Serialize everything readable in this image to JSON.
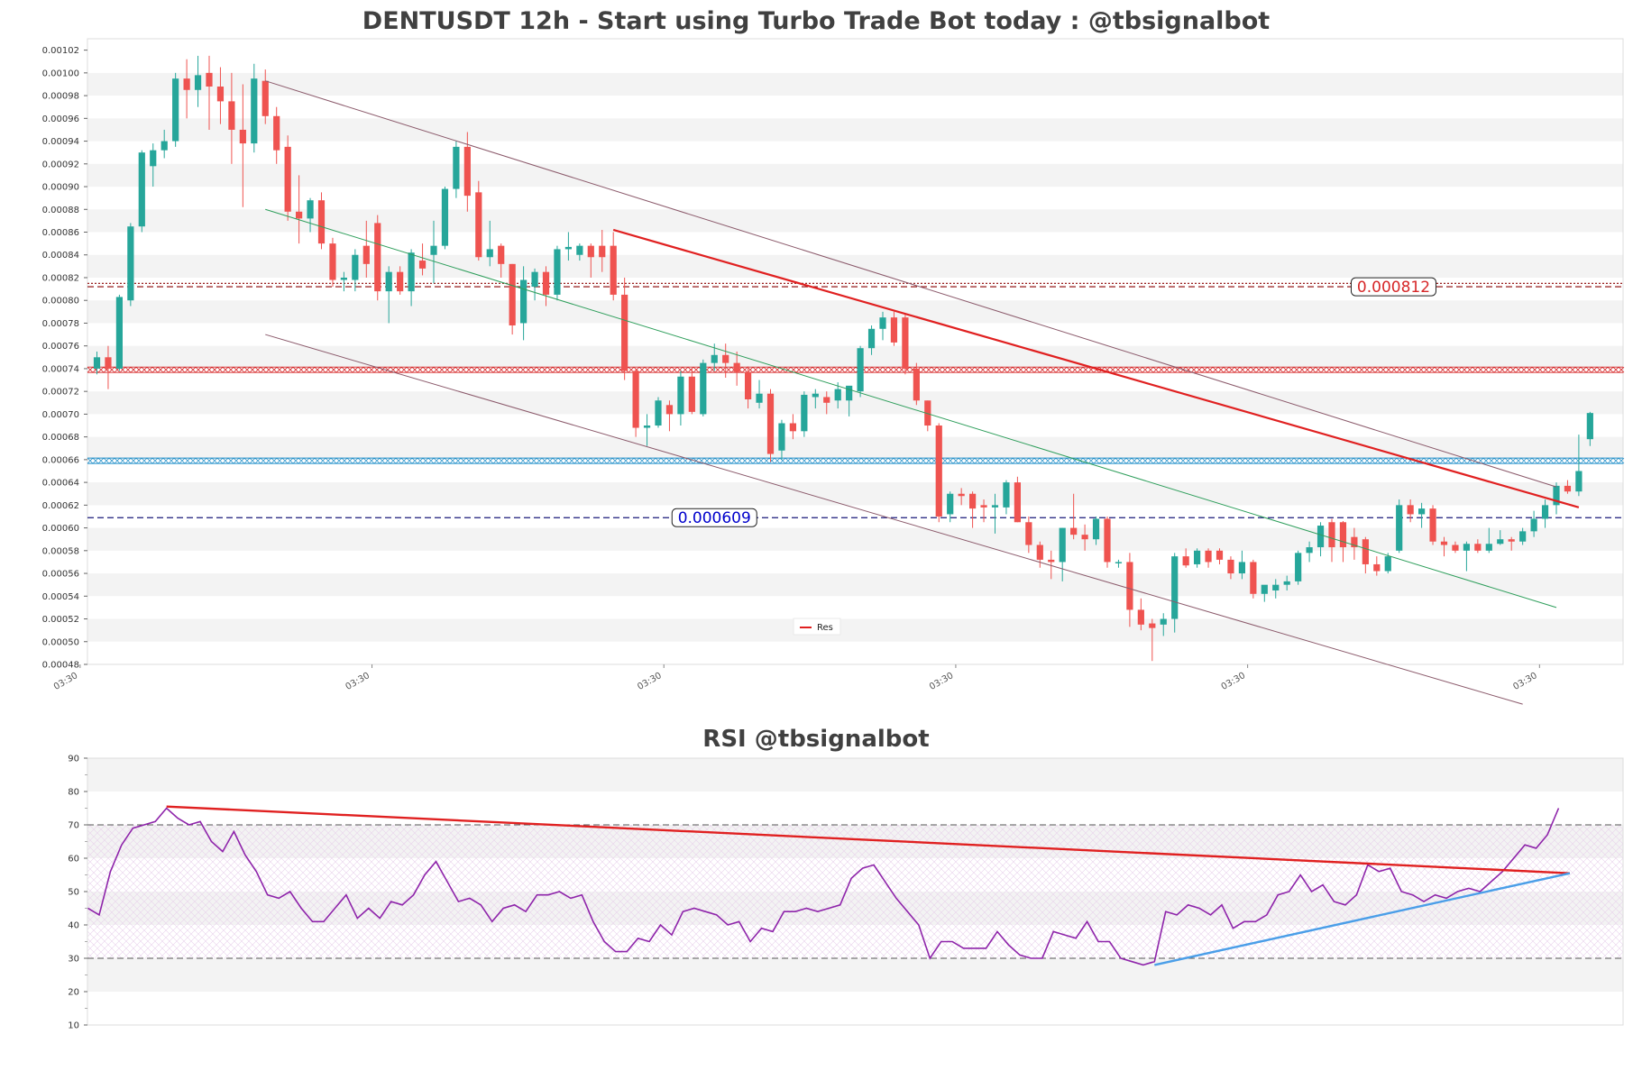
{
  "chart_data": [
    {
      "type": "candlestick",
      "title": "DENTUSDT 12h - Start using Turbo Trade Bot today : @tbsignalbot",
      "ylim": [
        0.00048,
        0.00103
      ],
      "y_ticks": [
        "0.00048",
        "0.00050",
        "0.00052",
        "0.00054",
        "0.00056",
        "0.00058",
        "0.00060",
        "0.00062",
        "0.00064",
        "0.00066",
        "0.00068",
        "0.00070",
        "0.00072",
        "0.00074",
        "0.00076",
        "0.00078",
        "0.00080",
        "0.00082",
        "0.00084",
        "0.00086",
        "0.00088",
        "0.00090",
        "0.00092",
        "0.00094",
        "0.00096",
        "0.00098",
        "0.00100",
        "0.00102"
      ],
      "x_tick_labels": [
        "03:30",
        "03:30",
        "03:30",
        "03:30",
        "03:30",
        "03:30"
      ],
      "x_tick_bars": [
        -1.5,
        24.5,
        50.5,
        76.5,
        102.5,
        128.5
      ],
      "ohlc": [
        [
          0.00074,
          0.000755,
          0.000735,
          0.00075
        ],
        [
          0.00075,
          0.00076,
          0.000722,
          0.00074
        ],
        [
          0.00074,
          0.000805,
          0.000738,
          0.000803
        ],
        [
          0.0008,
          0.000868,
          0.000795,
          0.000865
        ],
        [
          0.000865,
          0.000932,
          0.00086,
          0.00093
        ],
        [
          0.000918,
          0.000938,
          0.0009,
          0.000932
        ],
        [
          0.000932,
          0.00095,
          0.000925,
          0.00094
        ],
        [
          0.00094,
          0.001,
          0.000935,
          0.000995
        ],
        [
          0.000995,
          0.001012,
          0.00096,
          0.000985
        ],
        [
          0.000985,
          0.001015,
          0.00097,
          0.000998
        ],
        [
          0.001,
          0.001015,
          0.00095,
          0.000988
        ],
        [
          0.000988,
          0.001005,
          0.000955,
          0.000975
        ],
        [
          0.000975,
          0.001,
          0.00092,
          0.00095
        ],
        [
          0.00095,
          0.00099,
          0.000882,
          0.000938
        ],
        [
          0.000938,
          0.001008,
          0.00093,
          0.000995
        ],
        [
          0.000993,
          0.001003,
          0.000955,
          0.000962
        ],
        [
          0.000962,
          0.00097,
          0.00092,
          0.000932
        ],
        [
          0.000935,
          0.000945,
          0.00087,
          0.000878
        ],
        [
          0.000878,
          0.00091,
          0.00085,
          0.000872
        ],
        [
          0.000872,
          0.00089,
          0.00086,
          0.000888
        ],
        [
          0.000888,
          0.000895,
          0.000845,
          0.00085
        ],
        [
          0.00085,
          0.000855,
          0.000812,
          0.000818
        ],
        [
          0.000818,
          0.000825,
          0.000808,
          0.00082
        ],
        [
          0.000818,
          0.000845,
          0.000808,
          0.00084
        ],
        [
          0.000848,
          0.00087,
          0.00082,
          0.000832
        ],
        [
          0.000868,
          0.000875,
          0.0008,
          0.000808
        ],
        [
          0.000808,
          0.00083,
          0.00078,
          0.000825
        ],
        [
          0.000825,
          0.00083,
          0.000805,
          0.000808
        ],
        [
          0.000808,
          0.000845,
          0.000795,
          0.000842
        ],
        [
          0.000835,
          0.00085,
          0.000822,
          0.000828
        ],
        [
          0.00084,
          0.00087,
          0.000815,
          0.000848
        ],
        [
          0.000848,
          0.0009,
          0.000845,
          0.000898
        ],
        [
          0.000898,
          0.00094,
          0.00089,
          0.000935
        ],
        [
          0.000935,
          0.000948,
          0.000878,
          0.000892
        ],
        [
          0.000895,
          0.000905,
          0.000835,
          0.000838
        ],
        [
          0.000838,
          0.00087,
          0.00083,
          0.000845
        ],
        [
          0.000848,
          0.00085,
          0.00082,
          0.000832
        ],
        [
          0.000832,
          0.000832,
          0.00077,
          0.000778
        ],
        [
          0.00078,
          0.00083,
          0.000765,
          0.000818
        ],
        [
          0.000812,
          0.000828,
          0.0008,
          0.000825
        ],
        [
          0.000825,
          0.00083,
          0.000795,
          0.000805
        ],
        [
          0.000805,
          0.000848,
          0.0008,
          0.000845
        ],
        [
          0.000845,
          0.00086,
          0.000835,
          0.000847
        ],
        [
          0.00084,
          0.00085,
          0.000835,
          0.000848
        ],
        [
          0.000848,
          0.00085,
          0.00082,
          0.000838
        ],
        [
          0.000848,
          0.000862,
          0.000825,
          0.000838
        ],
        [
          0.000848,
          0.00086,
          0.0008,
          0.000805
        ],
        [
          0.000805,
          0.00082,
          0.00073,
          0.000738
        ],
        [
          0.000738,
          0.00074,
          0.00068,
          0.000688
        ],
        [
          0.000688,
          0.0007,
          0.000672,
          0.00069
        ],
        [
          0.00069,
          0.000715,
          0.000688,
          0.000712
        ],
        [
          0.000708,
          0.000712,
          0.000685,
          0.0007
        ],
        [
          0.0007,
          0.000738,
          0.00069,
          0.000733
        ],
        [
          0.000733,
          0.00074,
          0.0007,
          0.000702
        ],
        [
          0.0007,
          0.000748,
          0.000698,
          0.000745
        ],
        [
          0.000745,
          0.000762,
          0.000738,
          0.000752
        ],
        [
          0.000752,
          0.000762,
          0.000732,
          0.000745
        ],
        [
          0.000745,
          0.000755,
          0.000725,
          0.000737
        ],
        [
          0.000737,
          0.000742,
          0.000705,
          0.000713
        ],
        [
          0.00071,
          0.00073,
          0.000705,
          0.000718
        ],
        [
          0.000718,
          0.000722,
          0.000658,
          0.000665
        ],
        [
          0.000668,
          0.000695,
          0.00066,
          0.000692
        ],
        [
          0.000692,
          0.0007,
          0.000678,
          0.000685
        ],
        [
          0.000685,
          0.00072,
          0.00068,
          0.000717
        ],
        [
          0.000715,
          0.000722,
          0.000705,
          0.000718
        ],
        [
          0.000715,
          0.00072,
          0.0007,
          0.00071
        ],
        [
          0.000712,
          0.000728,
          0.000705,
          0.000722
        ],
        [
          0.000712,
          0.000722,
          0.000698,
          0.000725
        ],
        [
          0.00072,
          0.00076,
          0.000715,
          0.000758
        ],
        [
          0.000758,
          0.000778,
          0.000752,
          0.000775
        ],
        [
          0.000775,
          0.00079,
          0.000765,
          0.000785
        ],
        [
          0.000785,
          0.00079,
          0.00076,
          0.000763
        ],
        [
          0.000785,
          0.000788,
          0.000735,
          0.00074
        ],
        [
          0.00074,
          0.000745,
          0.000708,
          0.000712
        ],
        [
          0.000712,
          0.000712,
          0.000685,
          0.00069
        ],
        [
          0.00069,
          0.000692,
          0.000605,
          0.00061
        ],
        [
          0.000612,
          0.000632,
          0.000605,
          0.00063
        ],
        [
          0.00063,
          0.000635,
          0.00062,
          0.000628
        ],
        [
          0.00063,
          0.000632,
          0.0006,
          0.000617
        ],
        [
          0.00062,
          0.000625,
          0.000605,
          0.000618
        ],
        [
          0.000618,
          0.00063,
          0.000595,
          0.00062
        ],
        [
          0.000618,
          0.000642,
          0.000612,
          0.00064
        ],
        [
          0.00064,
          0.000645,
          0.000605,
          0.000605
        ],
        [
          0.000605,
          0.00061,
          0.000578,
          0.000585
        ],
        [
          0.000585,
          0.000588,
          0.000565,
          0.000572
        ],
        [
          0.000572,
          0.00058,
          0.000555,
          0.00057
        ],
        [
          0.00057,
          0.0006,
          0.000553,
          0.0006
        ],
        [
          0.0006,
          0.00063,
          0.00059,
          0.000594
        ],
        [
          0.000594,
          0.000603,
          0.00058,
          0.00059
        ],
        [
          0.00059,
          0.00061,
          0.000585,
          0.000608
        ],
        [
          0.000608,
          0.00061,
          0.000565,
          0.00057
        ],
        [
          0.00057,
          0.000572,
          0.000565,
          0.00057
        ],
        [
          0.00057,
          0.000578,
          0.000513,
          0.000528
        ],
        [
          0.000528,
          0.000538,
          0.00051,
          0.000515
        ],
        [
          0.000516,
          0.00052,
          0.000483,
          0.000512
        ],
        [
          0.000515,
          0.000525,
          0.000505,
          0.00052
        ],
        [
          0.00052,
          0.000578,
          0.000508,
          0.000575
        ],
        [
          0.000575,
          0.000582,
          0.000565,
          0.000567
        ],
        [
          0.000568,
          0.000582,
          0.000565,
          0.00058
        ],
        [
          0.00058,
          0.000582,
          0.000565,
          0.00057
        ],
        [
          0.00058,
          0.000582,
          0.000568,
          0.000572
        ],
        [
          0.000572,
          0.000575,
          0.000555,
          0.00056
        ],
        [
          0.00056,
          0.00058,
          0.000555,
          0.00057
        ],
        [
          0.00057,
          0.000572,
          0.000538,
          0.000542
        ],
        [
          0.000542,
          0.000548,
          0.000535,
          0.00055
        ],
        [
          0.000545,
          0.000555,
          0.000538,
          0.00055
        ],
        [
          0.00055,
          0.000558,
          0.000545,
          0.000553
        ],
        [
          0.000553,
          0.00058,
          0.00055,
          0.000578
        ],
        [
          0.000578,
          0.000588,
          0.00057,
          0.000583
        ],
        [
          0.000583,
          0.000605,
          0.000575,
          0.000602
        ],
        [
          0.000605,
          0.000608,
          0.00057,
          0.000583
        ],
        [
          0.000605,
          0.000606,
          0.00057,
          0.000583
        ],
        [
          0.000592,
          0.0006,
          0.000572,
          0.000583
        ],
        [
          0.00059,
          0.000592,
          0.00056,
          0.000568
        ],
        [
          0.000568,
          0.000575,
          0.000558,
          0.000562
        ],
        [
          0.000562,
          0.000578,
          0.00056,
          0.000575
        ],
        [
          0.00058,
          0.000625,
          0.000578,
          0.00062
        ],
        [
          0.00062,
          0.000625,
          0.000605,
          0.000612
        ],
        [
          0.000612,
          0.000622,
          0.0006,
          0.000617
        ],
        [
          0.000617,
          0.00062,
          0.000585,
          0.000588
        ],
        [
          0.000588,
          0.000592,
          0.000575,
          0.000585
        ],
        [
          0.000585,
          0.000588,
          0.000578,
          0.00058
        ],
        [
          0.00058,
          0.000588,
          0.000562,
          0.000586
        ],
        [
          0.000586,
          0.00059,
          0.000578,
          0.00058
        ],
        [
          0.00058,
          0.0006,
          0.000578,
          0.000586
        ],
        [
          0.000586,
          0.000598,
          0.000585,
          0.00059
        ],
        [
          0.00059,
          0.000592,
          0.00058,
          0.000588
        ],
        [
          0.000588,
          0.0006,
          0.000585,
          0.000597
        ],
        [
          0.000597,
          0.000615,
          0.000592,
          0.000608
        ],
        [
          0.000608,
          0.000625,
          0.0006,
          0.00062
        ],
        [
          0.00062,
          0.00064,
          0.000612,
          0.000637
        ],
        [
          0.000637,
          0.000642,
          0.00063,
          0.000632
        ],
        [
          0.000632,
          0.000682,
          0.000628,
          0.00065
        ],
        [
          0.000678,
          0.000702,
          0.000672,
          0.000701
        ]
      ],
      "horizontal_levels": [
        {
          "value": 0.000815,
          "color": "#8b0000",
          "style": "dotted"
        },
        {
          "value": 0.000812,
          "color": "#8b0000",
          "style": "dashed",
          "label": "0.000812",
          "label_color": "#d62728",
          "label_bar": 115.5
        },
        {
          "value": 0.000739,
          "color": "#d62728",
          "style": "hatched"
        },
        {
          "value": 0.000659,
          "color": "#1f8ec9",
          "style": "hatched"
        },
        {
          "value": 0.000609,
          "color": "#1a1a7a",
          "style": "dashed",
          "label": "0.000609",
          "label_color": "#0000cc",
          "label_bar": 55
        }
      ],
      "trendlines": [
        {
          "name": "Res",
          "from": [
            15,
            0.000993
          ],
          "to": [
            130,
            0.000636
          ],
          "color": "#8b5a6b",
          "width": 1
        },
        {
          "name": "",
          "from": [
            15,
            0.00077
          ],
          "to": [
            127,
            0.000445
          ],
          "color": "#8b5a6b",
          "width": 1
        },
        {
          "name": "",
          "from": [
            15,
            0.00088
          ],
          "to": [
            130,
            0.00053
          ],
          "color": "#2e9e5b",
          "width": 1
        },
        {
          "name": "Res",
          "from": [
            46,
            0.000862
          ],
          "to": [
            132,
            0.000618
          ],
          "color": "#e02020",
          "width": 2.2
        }
      ],
      "legend": [
        "Res"
      ]
    },
    {
      "type": "line",
      "title": "RSI @tbsignalbot",
      "ylim": [
        10,
        90
      ],
      "y_ticks": [
        "10",
        "20",
        "30",
        "40",
        "50",
        "60",
        "70",
        "80",
        "90"
      ],
      "reference_lines": [
        30,
        70
      ],
      "values": [
        45,
        43,
        56,
        64,
        69,
        70,
        71,
        75,
        72,
        70,
        71,
        65,
        62,
        68,
        61,
        56,
        49,
        48,
        50,
        45,
        41,
        41,
        45,
        49,
        42,
        45,
        42,
        47,
        46,
        49,
        55,
        59,
        53,
        47,
        48,
        46,
        41,
        45,
        46,
        44,
        49,
        49,
        50,
        48,
        49,
        41,
        35,
        32,
        32,
        36,
        35,
        40,
        37,
        44,
        45,
        44,
        43,
        40,
        41,
        35,
        39,
        38,
        44,
        44,
        45,
        44,
        45,
        46,
        54,
        57,
        58,
        53,
        48,
        44,
        40,
        30,
        35,
        35,
        33,
        33,
        33,
        38,
        34,
        31,
        30,
        30,
        38,
        37,
        36,
        41,
        35,
        35,
        30,
        29,
        28,
        29,
        44,
        43,
        46,
        45,
        43,
        46,
        39,
        41,
        41,
        43,
        49,
        50,
        55,
        50,
        52,
        47,
        46,
        49,
        58,
        56,
        57,
        50,
        49,
        47,
        49,
        48,
        50,
        51,
        50,
        53,
        56,
        60,
        64,
        63,
        67,
        75
      ],
      "trendlines": [
        {
          "from": [
            7,
            75.5
          ],
          "to": [
            132,
            55.5
          ],
          "color": "#e02020",
          "width": 2.4
        },
        {
          "from": [
            95,
            28
          ],
          "to": [
            132,
            55.5
          ],
          "color": "#4a9ee8",
          "width": 2.4
        }
      ]
    }
  ]
}
